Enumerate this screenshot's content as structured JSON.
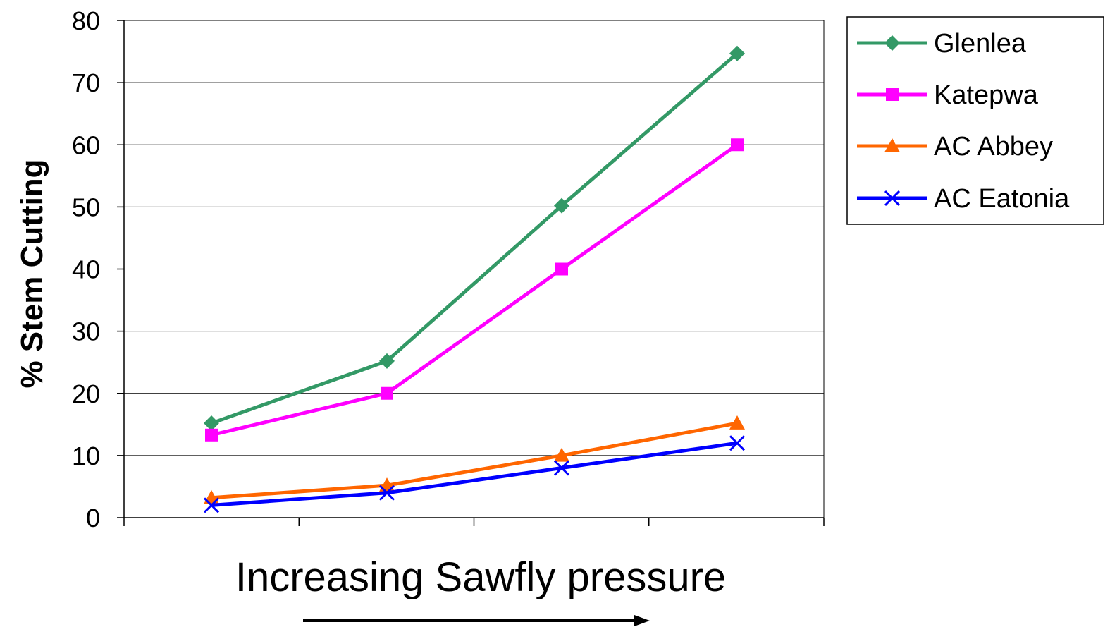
{
  "chart_data": {
    "type": "line",
    "x": [
      1,
      2,
      3,
      4
    ],
    "ylabel": "% Stem Cutting",
    "xlabel": "Increasing Sawfly pressure",
    "ylim": [
      0,
      80
    ],
    "yticks": [
      0,
      10,
      20,
      30,
      40,
      50,
      60,
      70,
      80
    ],
    "grid": true,
    "legend_position": "right",
    "series": [
      {
        "name": "Glenlea",
        "color": "#339966",
        "marker": "diamond",
        "values": [
          15.2,
          25.2,
          50.2,
          74.7
        ]
      },
      {
        "name": "Katepwa",
        "color": "#ff00ff",
        "marker": "square",
        "values": [
          13.3,
          20.0,
          40.0,
          60.0
        ]
      },
      {
        "name": "AC Abbey",
        "color": "#ff6600",
        "marker": "triangle",
        "values": [
          3.2,
          5.2,
          10.0,
          15.2
        ]
      },
      {
        "name": "AC Eatonia",
        "color": "#0000ff",
        "marker": "x",
        "values": [
          2.0,
          4.0,
          8.0,
          12.0
        ]
      }
    ]
  }
}
